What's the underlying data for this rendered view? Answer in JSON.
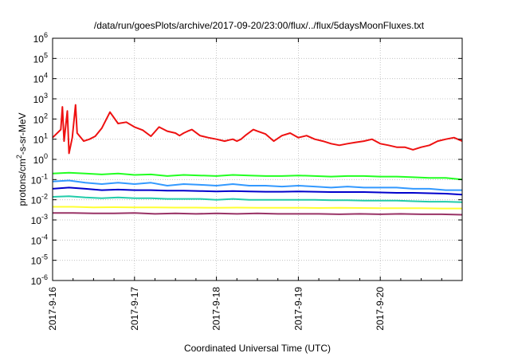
{
  "chart_data": {
    "type": "line",
    "title": "/data/run/goesPlots/archive/2017-09-20/23:00/flux/../flux/5daysMoonFluxes.txt",
    "xlabel": "Coordinated Universal Time (UTC)",
    "ylabel": "protons/cm²-s-sr-MeV",
    "ylabel_parts": {
      "pre": "protons/cm",
      "sup": "2",
      "post": "-s-sr-MeV"
    },
    "x_range_days": [
      "2017-09-16",
      "2017-09-21"
    ],
    "x_ticks": [
      "2017-9-16",
      "2017-9-17",
      "2017-9-18",
      "2017-9-19",
      "2017-9-20"
    ],
    "y_scale": "log",
    "y_range": [
      1e-06,
      1000000.0
    ],
    "y_ticks": [
      {
        "base": "10",
        "exp": "-6"
      },
      {
        "base": "10",
        "exp": "-5"
      },
      {
        "base": "10",
        "exp": "-4"
      },
      {
        "base": "10",
        "exp": "-3"
      },
      {
        "base": "10",
        "exp": "-2"
      },
      {
        "base": "10",
        "exp": "-1"
      },
      {
        "base": "10",
        "exp": "0"
      },
      {
        "base": "10",
        "exp": "1"
      },
      {
        "base": "10",
        "exp": "2"
      },
      {
        "base": "10",
        "exp": "3"
      },
      {
        "base": "10",
        "exp": "4"
      },
      {
        "base": "10",
        "exp": "5"
      },
      {
        "base": "10",
        "exp": "6"
      }
    ],
    "grid": true,
    "series": [
      {
        "color": "#ee1111",
        "x": [
          0.0,
          0.1,
          0.12,
          0.14,
          0.18,
          0.2,
          0.24,
          0.28,
          0.3,
          0.38,
          0.45,
          0.52,
          0.6,
          0.7,
          0.8,
          0.9,
          1.0,
          1.1,
          1.2,
          1.3,
          1.4,
          1.5,
          1.55,
          1.6,
          1.65,
          1.7,
          1.8,
          1.9,
          2.0,
          2.1,
          2.15,
          2.2,
          2.25,
          2.3,
          2.35,
          2.45,
          2.5,
          2.6,
          2.7,
          2.8,
          2.9,
          3.0,
          3.1,
          3.2,
          3.3,
          3.4,
          3.5,
          3.6,
          3.7,
          3.8,
          3.9,
          4.0,
          4.1,
          4.2,
          4.3,
          4.4,
          4.5,
          4.6,
          4.7,
          4.8,
          4.9,
          5.0
        ],
        "y": [
          12,
          30,
          400,
          8,
          250,
          2,
          12,
          500,
          20,
          8,
          10,
          14,
          35,
          220,
          60,
          70,
          40,
          28,
          14,
          40,
          25,
          20,
          15,
          20,
          25,
          30,
          15,
          12,
          10,
          8,
          9,
          10,
          8,
          10,
          15,
          30,
          25,
          18,
          8,
          15,
          20,
          12,
          15,
          10,
          8,
          6,
          5,
          6,
          7,
          8,
          10,
          6,
          5,
          4,
          4,
          3,
          4,
          5,
          8,
          10,
          12,
          8
        ]
      },
      {
        "color": "#22ff22",
        "x": [
          0.0,
          0.2,
          0.4,
          0.6,
          0.8,
          1.0,
          1.2,
          1.4,
          1.6,
          1.8,
          2.0,
          2.2,
          2.4,
          2.6,
          2.8,
          3.0,
          3.2,
          3.4,
          3.6,
          3.8,
          4.0,
          4.2,
          4.4,
          4.6,
          4.8,
          5.0
        ],
        "y": [
          0.2,
          0.22,
          0.2,
          0.18,
          0.2,
          0.17,
          0.18,
          0.15,
          0.17,
          0.16,
          0.15,
          0.17,
          0.16,
          0.15,
          0.15,
          0.16,
          0.15,
          0.14,
          0.15,
          0.15,
          0.14,
          0.14,
          0.13,
          0.12,
          0.12,
          0.1
        ]
      },
      {
        "color": "#3399ff",
        "x": [
          0.0,
          0.2,
          0.4,
          0.6,
          0.8,
          1.0,
          1.2,
          1.4,
          1.6,
          1.8,
          2.0,
          2.2,
          2.4,
          2.6,
          2.8,
          3.0,
          3.2,
          3.4,
          3.6,
          3.8,
          4.0,
          4.2,
          4.4,
          4.6,
          4.8,
          5.0
        ],
        "y": [
          0.08,
          0.09,
          0.07,
          0.06,
          0.07,
          0.06,
          0.07,
          0.05,
          0.06,
          0.055,
          0.05,
          0.06,
          0.05,
          0.05,
          0.045,
          0.05,
          0.045,
          0.04,
          0.045,
          0.04,
          0.04,
          0.04,
          0.035,
          0.035,
          0.03,
          0.03
        ]
      },
      {
        "color": "#0000cc",
        "x": [
          0.0,
          0.2,
          0.4,
          0.6,
          0.8,
          1.0,
          1.2,
          1.4,
          1.6,
          1.8,
          2.0,
          2.2,
          2.4,
          2.6,
          2.8,
          3.0,
          3.2,
          3.4,
          3.6,
          3.8,
          4.0,
          4.2,
          4.4,
          4.6,
          4.8,
          5.0
        ],
        "y": [
          0.035,
          0.04,
          0.035,
          0.03,
          0.032,
          0.03,
          0.03,
          0.028,
          0.028,
          0.027,
          0.026,
          0.027,
          0.026,
          0.025,
          0.025,
          0.026,
          0.025,
          0.024,
          0.024,
          0.024,
          0.023,
          0.022,
          0.022,
          0.021,
          0.02,
          0.018
        ]
      },
      {
        "color": "#22ccaa",
        "x": [
          0.0,
          0.2,
          0.4,
          0.6,
          0.8,
          1.0,
          1.2,
          1.4,
          1.6,
          1.8,
          2.0,
          2.2,
          2.4,
          2.6,
          2.8,
          3.0,
          3.2,
          3.4,
          3.6,
          3.8,
          4.0,
          4.2,
          4.4,
          4.6,
          4.8,
          5.0
        ],
        "y": [
          0.014,
          0.015,
          0.013,
          0.012,
          0.013,
          0.012,
          0.012,
          0.011,
          0.011,
          0.011,
          0.01,
          0.011,
          0.01,
          0.01,
          0.01,
          0.01,
          0.01,
          0.0095,
          0.0095,
          0.009,
          0.009,
          0.009,
          0.0085,
          0.008,
          0.008,
          0.0075
        ]
      },
      {
        "color": "#ffff33",
        "x": [
          0.0,
          0.25,
          0.5,
          0.75,
          1.0,
          1.25,
          1.5,
          1.75,
          2.0,
          2.25,
          2.5,
          2.75,
          3.0,
          3.25,
          3.5,
          3.75,
          4.0,
          4.25,
          4.5,
          4.75,
          5.0
        ],
        "y": [
          0.0045,
          0.0045,
          0.0042,
          0.0043,
          0.0042,
          0.0042,
          0.0041,
          0.0041,
          0.004,
          0.0041,
          0.004,
          0.004,
          0.004,
          0.0039,
          0.004,
          0.0039,
          0.0038,
          0.0038,
          0.0038,
          0.0037,
          0.0037
        ]
      },
      {
        "color": "#993366",
        "x": [
          0.0,
          0.25,
          0.5,
          0.75,
          1.0,
          1.25,
          1.5,
          1.75,
          2.0,
          2.25,
          2.5,
          2.75,
          3.0,
          3.25,
          3.5,
          3.75,
          4.0,
          4.25,
          4.5,
          4.75,
          5.0
        ],
        "y": [
          0.0022,
          0.0022,
          0.0021,
          0.0021,
          0.0022,
          0.002,
          0.0021,
          0.002,
          0.0021,
          0.002,
          0.0021,
          0.002,
          0.002,
          0.002,
          0.0019,
          0.002,
          0.0019,
          0.002,
          0.0019,
          0.0019,
          0.0018
        ]
      }
    ]
  }
}
